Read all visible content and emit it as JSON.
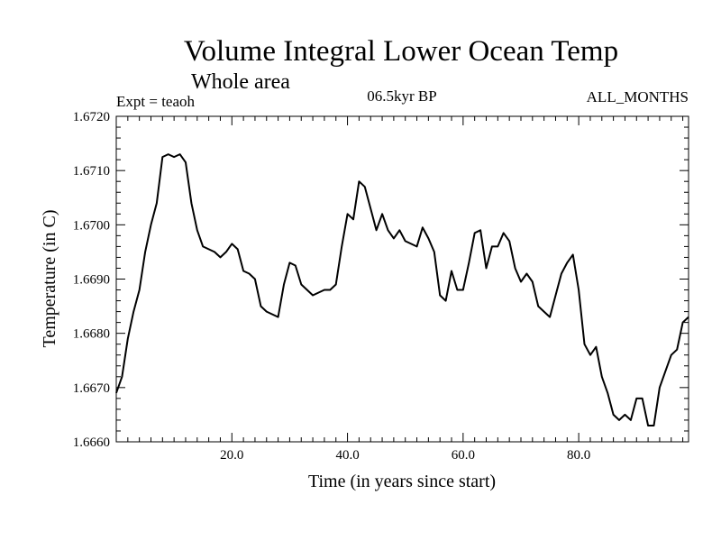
{
  "chart_data": {
    "type": "line",
    "title": "Volume Integral Lower Ocean Temp",
    "subtitle": "Whole area",
    "header_left": "Expt = teaoh",
    "header_center": "06.5kyr BP",
    "header_right": "ALL_MONTHS",
    "xlabel": "Time (in years since start)",
    "ylabel": "Temperature (in C)",
    "xlim": [
      0,
      99
    ],
    "ylim": [
      1.666,
      1.672
    ],
    "x_ticks": [
      20,
      40,
      60,
      80
    ],
    "x_tick_labels": [
      "20.0",
      "40.0",
      "60.0",
      "80.0"
    ],
    "y_ticks": [
      1.666,
      1.667,
      1.668,
      1.669,
      1.67,
      1.671,
      1.672
    ],
    "y_tick_labels": [
      "1.6660",
      "1.6670",
      "1.6680",
      "1.6690",
      "1.6700",
      "1.6710",
      "1.6720"
    ],
    "grid": false,
    "line_color": "#000000",
    "series": [
      {
        "name": "Temperature",
        "x": [
          0,
          1,
          2,
          3,
          4,
          5,
          6,
          7,
          8,
          9,
          10,
          11,
          12,
          13,
          14,
          15,
          16,
          17,
          18,
          19,
          20,
          21,
          22,
          23,
          24,
          25,
          26,
          27,
          28,
          29,
          30,
          31,
          32,
          33,
          34,
          35,
          36,
          37,
          38,
          39,
          40,
          41,
          42,
          43,
          44,
          45,
          46,
          47,
          48,
          49,
          50,
          51,
          52,
          53,
          54,
          55,
          56,
          57,
          58,
          59,
          60,
          61,
          62,
          63,
          64,
          65,
          66,
          67,
          68,
          69,
          70,
          71,
          72,
          73,
          74,
          75,
          76,
          77,
          78,
          79,
          80,
          81,
          82,
          83,
          84,
          85,
          86,
          87,
          88,
          89,
          90,
          91,
          92,
          93,
          94,
          95,
          96,
          97,
          98,
          99
        ],
        "values": [
          1.6669,
          1.6672,
          1.6679,
          1.6684,
          1.6688,
          1.6695,
          1.67,
          1.6704,
          1.67125,
          1.6713,
          1.67125,
          1.6713,
          1.67115,
          1.6704,
          1.6699,
          1.6696,
          1.66955,
          1.6695,
          1.6694,
          1.6695,
          1.66965,
          1.66955,
          1.66915,
          1.6691,
          1.669,
          1.6685,
          1.6684,
          1.66835,
          1.6683,
          1.6689,
          1.6693,
          1.66925,
          1.6689,
          1.6688,
          1.6687,
          1.66875,
          1.6688,
          1.6688,
          1.6689,
          1.6696,
          1.6702,
          1.6701,
          1.6708,
          1.6707,
          1.6703,
          1.6699,
          1.6702,
          1.6699,
          1.66975,
          1.6699,
          1.6697,
          1.66965,
          1.6696,
          1.66995,
          1.66975,
          1.6695,
          1.6687,
          1.6686,
          1.66915,
          1.6688,
          1.6688,
          1.6693,
          1.66985,
          1.6699,
          1.6692,
          1.6696,
          1.6696,
          1.66985,
          1.6697,
          1.6692,
          1.66895,
          1.6691,
          1.66895,
          1.6685,
          1.6684,
          1.6683,
          1.6687,
          1.6691,
          1.6693,
          1.66945,
          1.6688,
          1.6678,
          1.6676,
          1.66775,
          1.6672,
          1.6669,
          1.6665,
          1.6664,
          1.6665,
          1.6664,
          1.6668,
          1.6668,
          1.6663,
          1.6663,
          1.667,
          1.6673,
          1.6676,
          1.6677,
          1.6682,
          1.6683
        ]
      }
    ]
  }
}
